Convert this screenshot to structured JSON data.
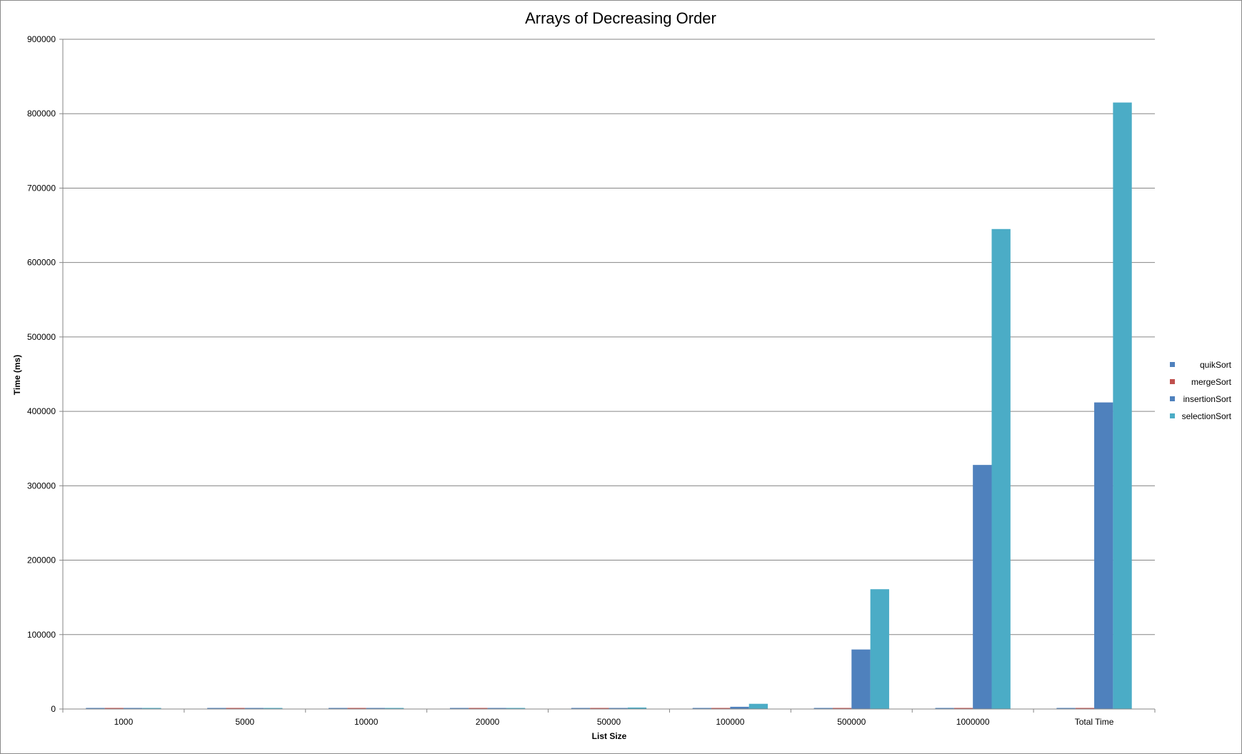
{
  "chart_data": {
    "type": "bar",
    "title": "Arrays of Decreasing Order",
    "xlabel": "List Size",
    "ylabel": "Time (ms)",
    "categories": [
      "1000",
      "5000",
      "10000",
      "20000",
      "50000",
      "100000",
      "500000",
      "1000000",
      "Total Time"
    ],
    "ylim": [
      0,
      900000
    ],
    "yticks": [
      "0",
      "100000",
      "200000",
      "300000",
      "400000",
      "500000",
      "600000",
      "700000",
      "800000",
      "900000"
    ],
    "grid": true,
    "legend_position": "right",
    "series": [
      {
        "name": "quikSort",
        "color": "#4f81bd",
        "values": [
          0,
          0,
          0,
          0,
          0,
          0,
          0,
          0,
          0
        ]
      },
      {
        "name": "mergeSort",
        "color": "#c0504d",
        "values": [
          0,
          0,
          0,
          0,
          0,
          0,
          0,
          0,
          0
        ]
      },
      {
        "name": "insertionSort",
        "color": "#4f81bd",
        "values": [
          0,
          0,
          0,
          0,
          500,
          3000,
          80000,
          328000,
          412000
        ]
      },
      {
        "name": "selectionSort",
        "color": "#4bacc6",
        "values": [
          0,
          0,
          0,
          0,
          2000,
          7000,
          161000,
          645000,
          815000
        ]
      }
    ]
  }
}
